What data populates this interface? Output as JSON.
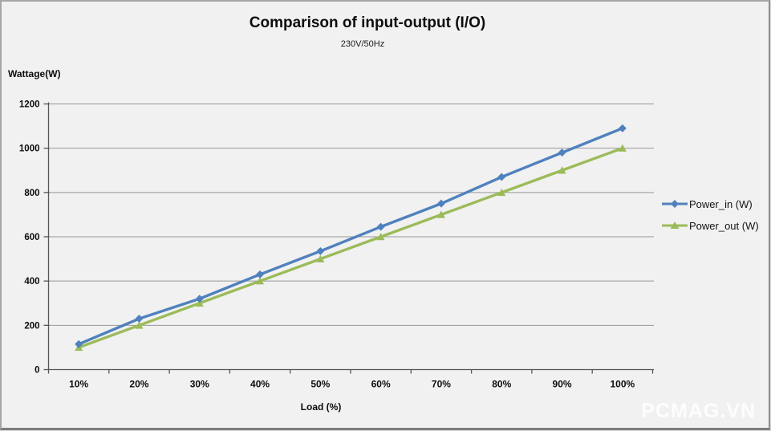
{
  "chart": {
    "title": "Comparison of input-output (I/O)",
    "subtitle": "230V/50Hz",
    "y_axis_title": "Wattage(W)",
    "x_axis_title": "Load (%)",
    "watermark": "PCMAG.VN",
    "colors": {
      "background": "#f1f1f1",
      "gridline": "#989898",
      "axis": "#555555",
      "power_in": "#4f81bd",
      "power_out": "#9bbb59"
    }
  },
  "chart_data": {
    "type": "line",
    "title": "Comparison of input-output (I/O)",
    "subtitle": "230V/50Hz",
    "xlabel": "Load (%)",
    "ylabel": "Wattage(W)",
    "categories": [
      "10%",
      "20%",
      "30%",
      "40%",
      "50%",
      "60%",
      "70%",
      "80%",
      "90%",
      "100%"
    ],
    "series": [
      {
        "name": "Power_in (W)",
        "color": "#4f81bd",
        "marker": "diamond",
        "values": [
          115,
          230,
          320,
          430,
          535,
          645,
          750,
          870,
          980,
          1090
        ]
      },
      {
        "name": "Power_out (W)",
        "color": "#9bbb59",
        "marker": "triangle",
        "values": [
          100,
          200,
          300,
          400,
          500,
          600,
          700,
          800,
          900,
          1000
        ]
      }
    ],
    "ylim": [
      0,
      1200
    ],
    "yticks": [
      0,
      200,
      400,
      600,
      800,
      1000,
      1200
    ],
    "grid": true,
    "legend_position": "right"
  }
}
